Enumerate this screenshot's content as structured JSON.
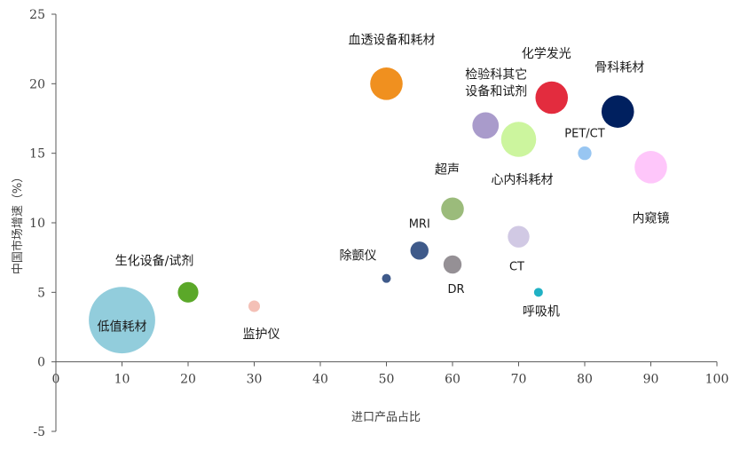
{
  "chart_data": {
    "type": "scatter",
    "subtype": "bubble",
    "xlabel": "进口产品占比",
    "ylabel": "中国市场增速（%）",
    "xlim": [
      0,
      100
    ],
    "ylim": [
      -5,
      25
    ],
    "x_ticks": [
      0,
      10,
      20,
      30,
      40,
      50,
      60,
      70,
      80,
      90,
      100
    ],
    "y_ticks": [
      -5,
      0,
      5,
      10,
      15,
      20,
      25
    ],
    "grid": false,
    "legend": "none",
    "points": [
      {
        "label": [
          "低值耗材"
        ],
        "x": 10,
        "y": 3,
        "size": 100,
        "color": "#92CDDC"
      },
      {
        "label": [
          "生化设备/试剂"
        ],
        "x": 20,
        "y": 5,
        "size": 8,
        "color": "#5BA829"
      },
      {
        "label": [
          "监护仪"
        ],
        "x": 30,
        "y": 4,
        "size": 2,
        "color": "#F4C0B6"
      },
      {
        "label": [
          "除颤仪"
        ],
        "x": 50,
        "y": 6,
        "size": 1,
        "color": "#3F5A8A"
      },
      {
        "label": [
          "MRI"
        ],
        "x": 55,
        "y": 8,
        "size": 6,
        "color": "#3F5A8A"
      },
      {
        "label": [
          "DR"
        ],
        "x": 60,
        "y": 7,
        "size": 6,
        "color": "#959095"
      },
      {
        "label": [
          "超声"
        ],
        "x": 60,
        "y": 11,
        "size": 10,
        "color": "#9BBB7B"
      },
      {
        "label": [
          "血透设备和耗材"
        ],
        "x": 50,
        "y": 20,
        "size": 22,
        "color": "#F0901F"
      },
      {
        "label": [
          "检验科其它",
          "设备和试剂"
        ],
        "x": 65,
        "y": 17,
        "size": 14,
        "color": "#A99BCB"
      },
      {
        "label": [
          "心内科耗材"
        ],
        "x": 70,
        "y": 16,
        "size": 26,
        "color": "#CCF59E"
      },
      {
        "label": [
          "化学发光"
        ],
        "x": 75,
        "y": 19,
        "size": 22,
        "color": "#E32C3E"
      },
      {
        "label": [
          "骨科耗材"
        ],
        "x": 85,
        "y": 18,
        "size": 22,
        "color": "#00205F"
      },
      {
        "label": [
          "PET/CT"
        ],
        "x": 80,
        "y": 15,
        "size": 3,
        "color": "#98C6F2"
      },
      {
        "label": [
          "内窥镜"
        ],
        "x": 90,
        "y": 14,
        "size": 22,
        "color": "#FEC6FA"
      },
      {
        "label": [
          "CT"
        ],
        "x": 70,
        "y": 9,
        "size": 9,
        "color": "#D1C9E4"
      },
      {
        "label": [
          "呼吸机"
        ],
        "x": 73,
        "y": 5,
        "size": 1,
        "color": "#20B1C4"
      }
    ]
  }
}
